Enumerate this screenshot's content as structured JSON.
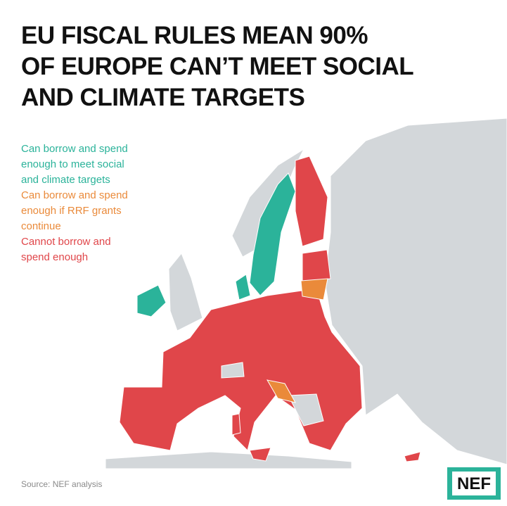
{
  "title": [
    "EU FISCAL RULES MEAN 90%",
    "OF EUROPE CAN’T MEET SOCIAL",
    "AND CLIMATE TARGETS"
  ],
  "legend": [
    {
      "lines": [
        "Can borrow and spend",
        "enough to meet social",
        "and climate targets"
      ],
      "color": "#2bb39a"
    },
    {
      "lines": [
        "Can borrow and spend",
        "enough if RRF grants",
        "continue"
      ],
      "color": "#ea8a3a"
    },
    {
      "lines": [
        "Cannot borrow and",
        "spend enough"
      ],
      "color": "#e0464a"
    }
  ],
  "source": "Source: NEF analysis",
  "logo": "NEF"
}
